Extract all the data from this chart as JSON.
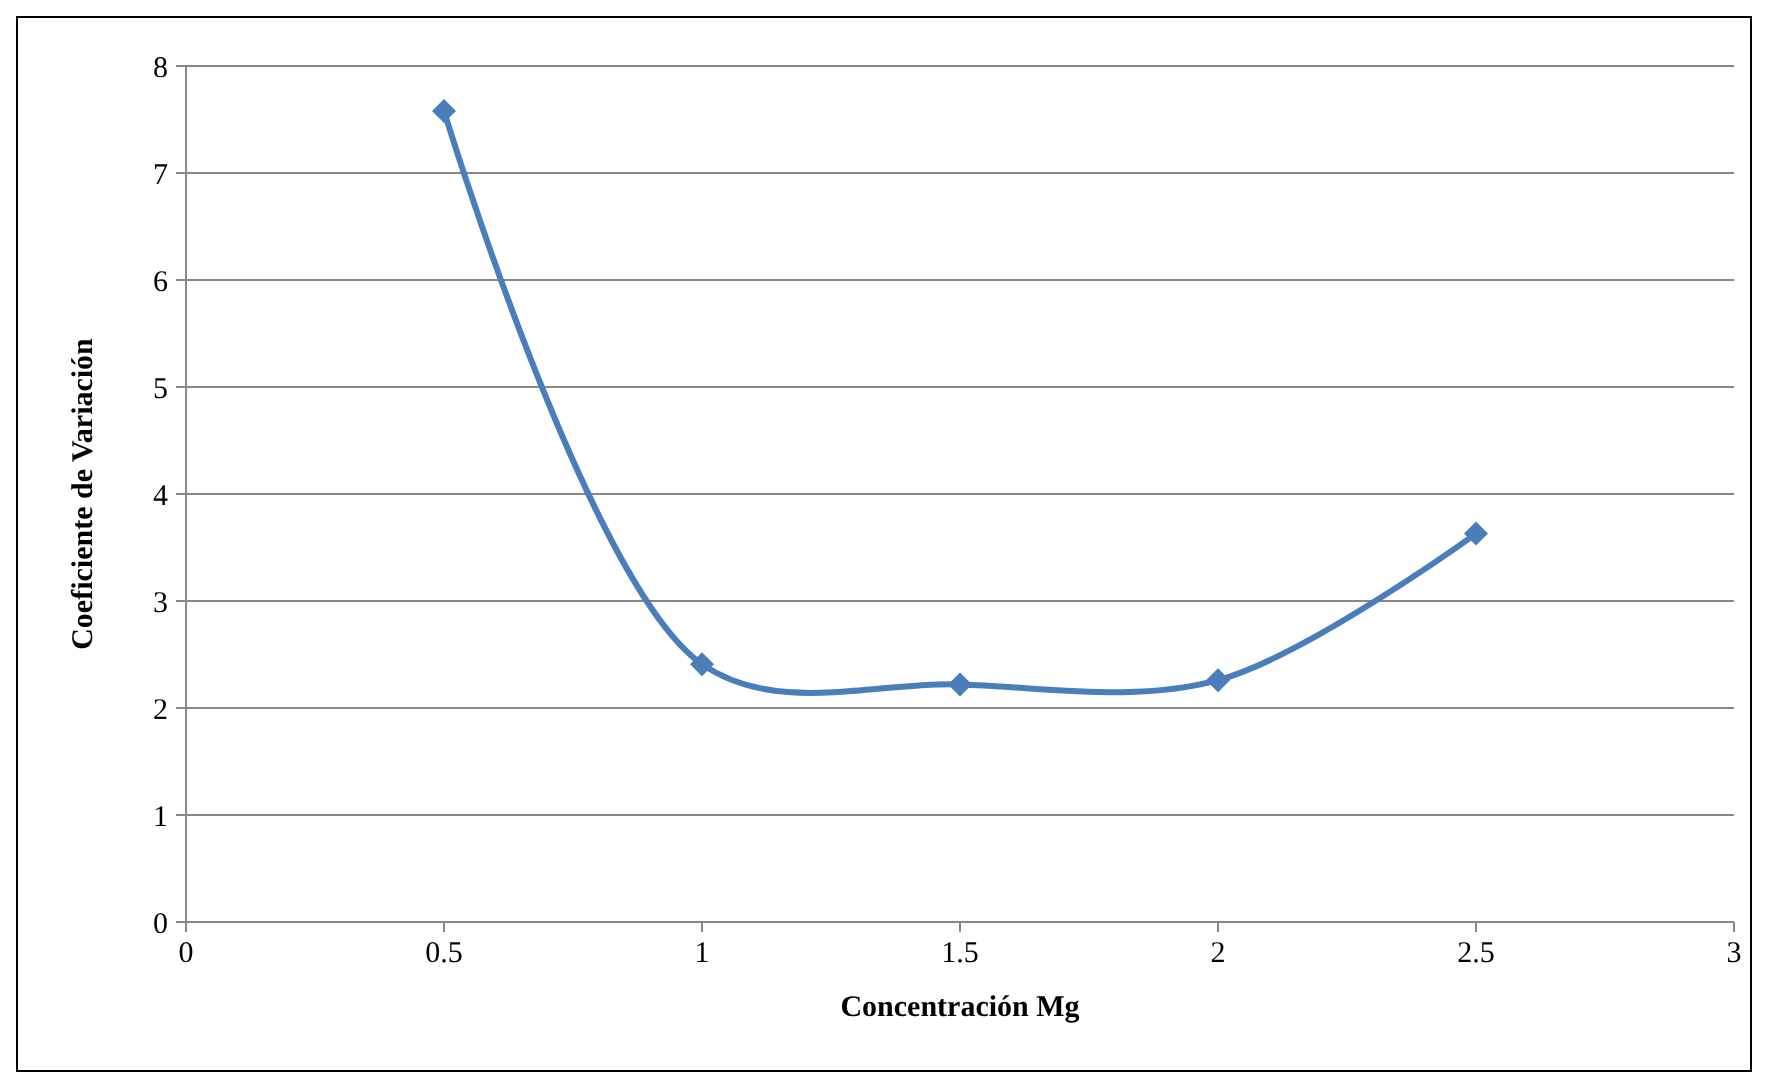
{
  "chart_data": {
    "type": "line",
    "xlabel": "Concentración Mg",
    "ylabel": "Coeficiente de Variación",
    "x": [
      0.5,
      1,
      1.5,
      2,
      2.5
    ],
    "series": [
      {
        "color": "#4a7ebb",
        "values": [
          7.58,
          2.41,
          2.22,
          2.26,
          3.63
        ]
      }
    ],
    "xlim": [
      0,
      3
    ],
    "xticks": [
      0,
      0.5,
      1,
      1.5,
      2,
      2.5,
      3
    ],
    "ylim": [
      0,
      8
    ],
    "yticks": [
      0,
      1,
      2,
      3,
      4,
      5,
      6,
      7,
      8
    ],
    "grid": "y",
    "marker": "diamond",
    "line_style": "solid"
  }
}
